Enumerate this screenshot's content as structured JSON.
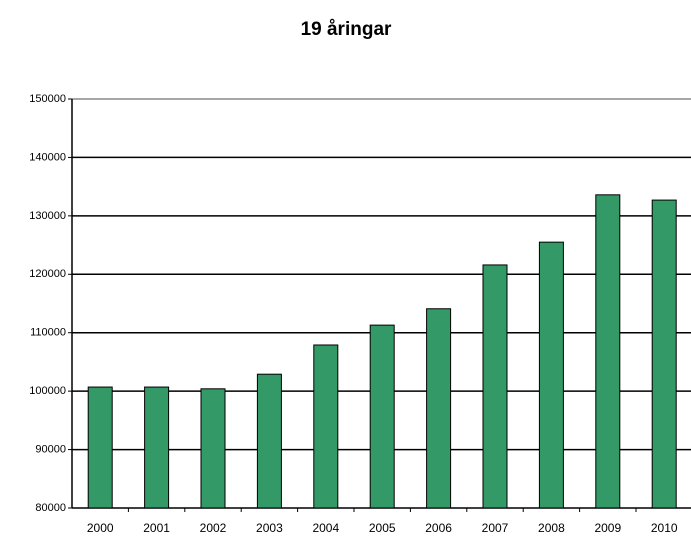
{
  "chart_data": {
    "type": "bar",
    "title": "19 åringar",
    "categories": [
      "2000",
      "2001",
      "2002",
      "2003",
      "2004",
      "2005",
      "2006",
      "2007",
      "2008",
      "2009",
      "2010"
    ],
    "values": [
      100700,
      100700,
      100400,
      102900,
      107900,
      111300,
      114100,
      121600,
      125500,
      133600,
      132700
    ],
    "color": "#339966",
    "ylim": [
      80000,
      150000
    ],
    "yticks": [
      80000,
      90000,
      100000,
      110000,
      120000,
      130000,
      140000,
      150000
    ],
    "grid": true
  }
}
